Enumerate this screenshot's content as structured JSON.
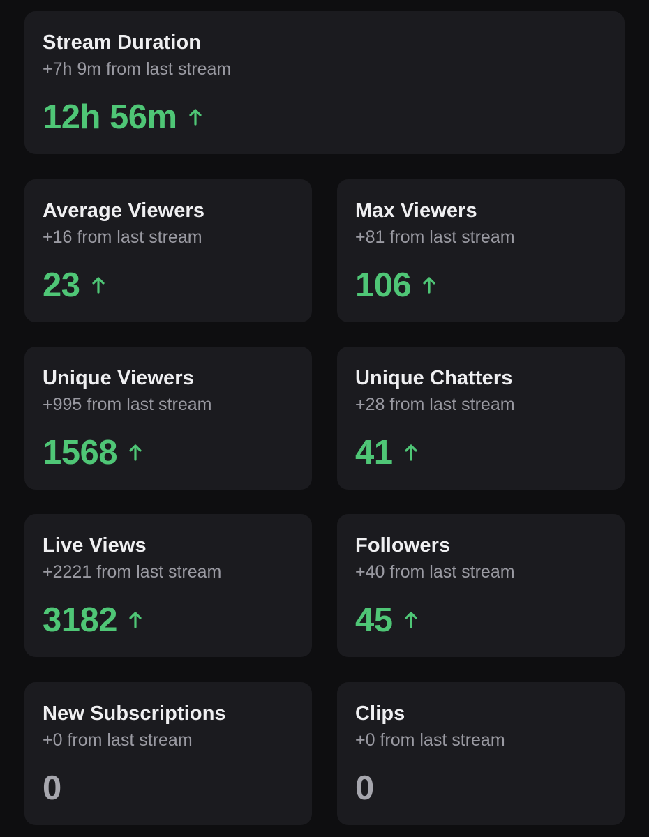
{
  "accent_color": "#4fc676",
  "neutral_value_color": "#a6a6ad",
  "cards": [
    {
      "title": "Stream Duration",
      "subtitle": "+7h 9m from last stream",
      "value": "12h 56m",
      "trend": "up",
      "trend_icon": "arrow-up-icon"
    },
    {
      "title": "Average Viewers",
      "subtitle": "+16 from last stream",
      "value": "23",
      "trend": "up",
      "trend_icon": "arrow-up-icon"
    },
    {
      "title": "Max Viewers",
      "subtitle": "+81 from last stream",
      "value": "106",
      "trend": "up",
      "trend_icon": "arrow-up-icon"
    },
    {
      "title": "Unique Viewers",
      "subtitle": "+995 from last stream",
      "value": "1568",
      "trend": "up",
      "trend_icon": "arrow-up-icon"
    },
    {
      "title": "Unique Chatters",
      "subtitle": "+28 from last stream",
      "value": "41",
      "trend": "up",
      "trend_icon": "arrow-up-icon"
    },
    {
      "title": "Live Views",
      "subtitle": "+2221 from last stream",
      "value": "3182",
      "trend": "up",
      "trend_icon": "arrow-up-icon"
    },
    {
      "title": "Followers",
      "subtitle": "+40 from last stream",
      "value": "45",
      "trend": "up",
      "trend_icon": "arrow-up-icon"
    },
    {
      "title": "New Subscriptions",
      "subtitle": "+0 from last stream",
      "value": "0",
      "trend": "flat"
    },
    {
      "title": "Clips",
      "subtitle": "+0 from last stream",
      "value": "0",
      "trend": "flat"
    }
  ]
}
